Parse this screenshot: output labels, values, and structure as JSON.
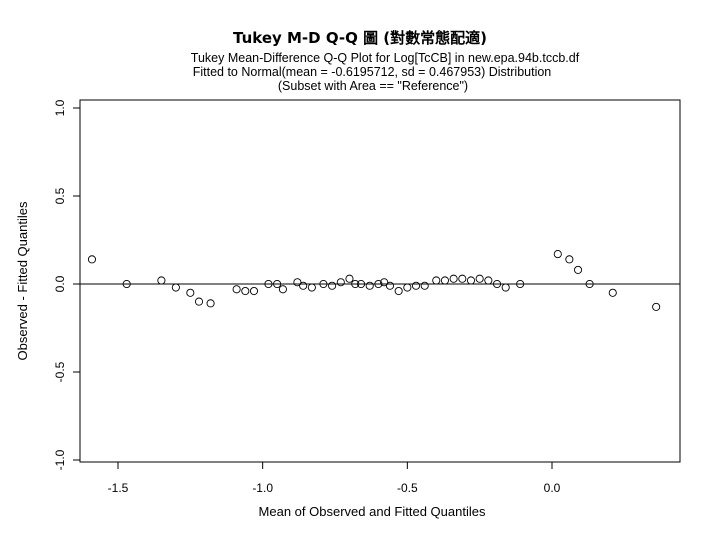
{
  "chart_data": {
    "type": "scatter",
    "title": "Tukey M-D Q-Q 圖 (對數常態配適)",
    "subtitle_lines": [
      "Tukey Mean-Difference Q-Q Plot for Log[TcCB] in new.epa.94b.tccb.df",
      "Fitted to Normal(mean = -0.6195712, sd = 0.467953) Distribution",
      "(Subset with Area == \"Reference\")"
    ],
    "xlabel": "Mean of Observed and Fitted Quantiles",
    "ylabel": "Observed - Fitted Quantiles",
    "xlim": [
      -1.65,
      0.4
    ],
    "ylim": [
      -1.0,
      1.0
    ],
    "x_ticks": [
      -1.5,
      -1.0,
      -0.5,
      0.0
    ],
    "x_tick_labels": [
      "-1.5",
      "-1.0",
      "-0.5",
      "0.0"
    ],
    "y_ticks": [
      -1.0,
      -0.5,
      0.0,
      0.5,
      1.0
    ],
    "y_tick_labels": [
      "-1.0",
      "-0.5",
      "0.0",
      "0.5",
      "1.0"
    ],
    "reference_line_y": 0,
    "marker": "open-circle",
    "grid": false,
    "points": [
      {
        "x": -1.59,
        "y": 0.14
      },
      {
        "x": -1.47,
        "y": 0.0
      },
      {
        "x": -1.35,
        "y": 0.02
      },
      {
        "x": -1.3,
        "y": -0.02
      },
      {
        "x": -1.25,
        "y": -0.05
      },
      {
        "x": -1.22,
        "y": -0.1
      },
      {
        "x": -1.18,
        "y": -0.11
      },
      {
        "x": -1.09,
        "y": -0.03
      },
      {
        "x": -1.06,
        "y": -0.04
      },
      {
        "x": -1.03,
        "y": -0.04
      },
      {
        "x": -0.98,
        "y": 0.0
      },
      {
        "x": -0.95,
        "y": 0.0
      },
      {
        "x": -0.93,
        "y": -0.03
      },
      {
        "x": -0.88,
        "y": 0.01
      },
      {
        "x": -0.86,
        "y": -0.01
      },
      {
        "x": -0.83,
        "y": -0.02
      },
      {
        "x": -0.79,
        "y": 0.0
      },
      {
        "x": -0.76,
        "y": -0.01
      },
      {
        "x": -0.73,
        "y": 0.01
      },
      {
        "x": -0.7,
        "y": 0.03
      },
      {
        "x": -0.68,
        "y": 0.0
      },
      {
        "x": -0.66,
        "y": 0.0
      },
      {
        "x": -0.63,
        "y": -0.01
      },
      {
        "x": -0.6,
        "y": 0.0
      },
      {
        "x": -0.58,
        "y": 0.01
      },
      {
        "x": -0.56,
        "y": -0.01
      },
      {
        "x": -0.53,
        "y": -0.04
      },
      {
        "x": -0.5,
        "y": -0.02
      },
      {
        "x": -0.47,
        "y": -0.01
      },
      {
        "x": -0.44,
        "y": -0.01
      },
      {
        "x": -0.4,
        "y": 0.02
      },
      {
        "x": -0.37,
        "y": 0.02
      },
      {
        "x": -0.34,
        "y": 0.03
      },
      {
        "x": -0.31,
        "y": 0.03
      },
      {
        "x": -0.28,
        "y": 0.02
      },
      {
        "x": -0.25,
        "y": 0.03
      },
      {
        "x": -0.22,
        "y": 0.02
      },
      {
        "x": -0.19,
        "y": 0.0
      },
      {
        "x": -0.16,
        "y": -0.02
      },
      {
        "x": -0.11,
        "y": 0.0
      },
      {
        "x": 0.02,
        "y": 0.17
      },
      {
        "x": 0.06,
        "y": 0.14
      },
      {
        "x": 0.09,
        "y": 0.08
      },
      {
        "x": 0.13,
        "y": 0.0
      },
      {
        "x": 0.21,
        "y": -0.05
      },
      {
        "x": 0.36,
        "y": -0.13
      }
    ]
  }
}
